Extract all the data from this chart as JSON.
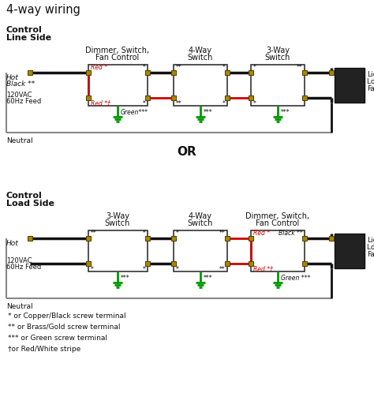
{
  "title": "4-way wiring",
  "bg_color": "#ffffff",
  "black_color": "#111111",
  "red_color": "#cc0000",
  "green_color": "#009900",
  "gray_color": "#888888",
  "gold_color": "#aa8800",
  "box_edge_color": "#333333",
  "footnotes": [
    "* or Copper/Black screw terminal",
    "** or Brass/Gold screw terminal",
    "*** or Green screw terminal",
    "†or Red/White stripe"
  ]
}
